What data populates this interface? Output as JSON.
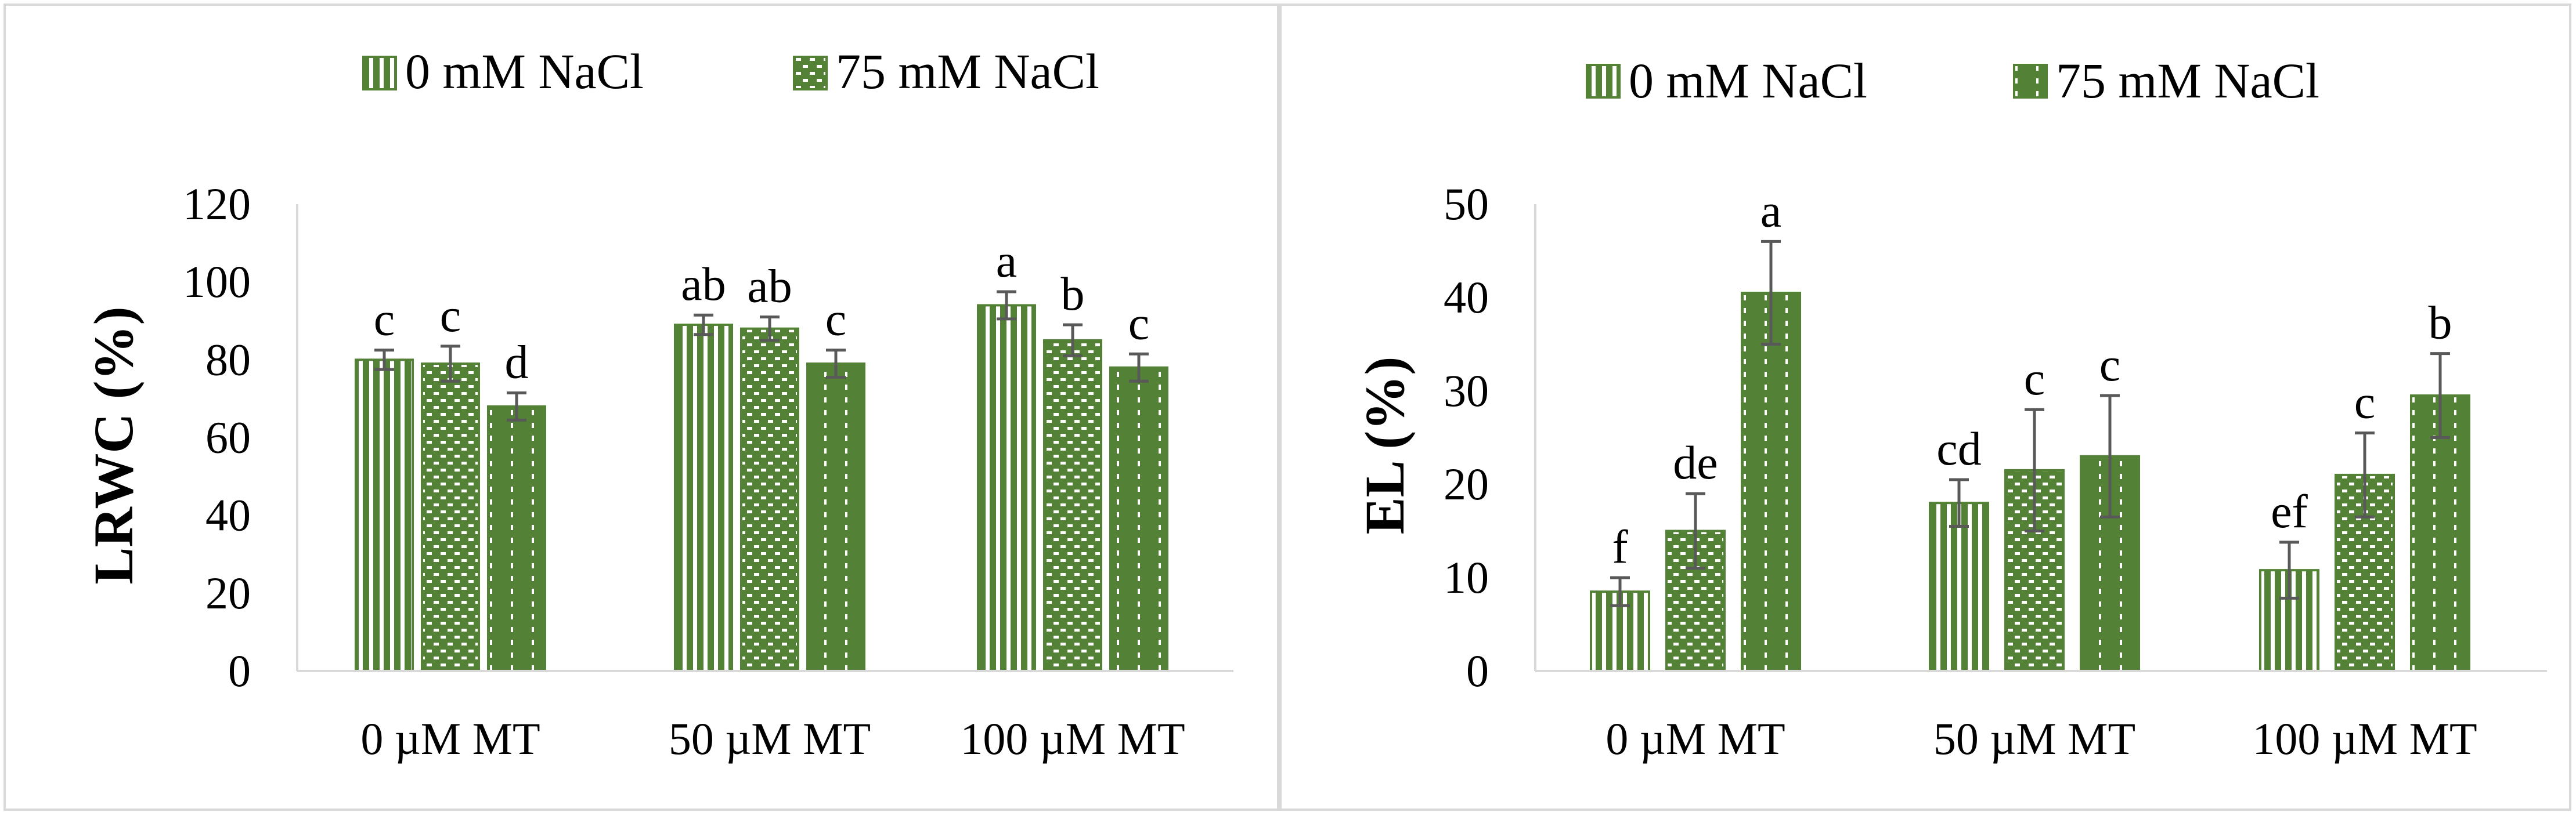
{
  "colors": {
    "bar_fill": "#538135",
    "bar_border": "#538135",
    "pattern_line": "#ffffff",
    "error_bar": "#595959",
    "axis": "#d9d9d9",
    "panel_border": "#d9d9d9"
  },
  "chart_data": [
    {
      "type": "bar",
      "title": "",
      "xlabel": "",
      "ylabel": "LRWC (%)",
      "ylim": [
        0,
        120
      ],
      "yticks": [
        "0",
        "20",
        "40",
        "60",
        "80",
        "100",
        "120"
      ],
      "grid": false,
      "legend_position": "top",
      "categories": [
        "0 µM MT",
        "50 µM MT",
        "100 µM MT"
      ],
      "legend": [
        {
          "label": "0 mM NaCl",
          "pattern": "vertical-stripes"
        },
        {
          "label": "75 mM NaCl",
          "pattern": "dots"
        }
      ],
      "series": [
        {
          "name": "0 mM NaCl",
          "pattern": "vertical-stripes",
          "values": [
            80,
            89,
            94
          ],
          "errors": [
            2.5,
            2.5,
            3.5
          ],
          "labels": [
            "c",
            "ab",
            "a"
          ]
        },
        {
          "name": "75 mM NaCl (bar 2)",
          "pattern": "dots",
          "values": [
            79,
            88,
            85
          ],
          "errors": [
            4.5,
            3,
            4
          ],
          "labels": [
            "c",
            "ab",
            "b"
          ]
        },
        {
          "name": "75 mM NaCl (bar 3)",
          "pattern": "dotted-lines",
          "values": [
            68,
            79,
            78
          ],
          "errors": [
            3.5,
            3.5,
            3.5
          ],
          "labels": [
            "d",
            "c",
            "c"
          ]
        }
      ]
    },
    {
      "type": "bar",
      "title": "",
      "xlabel": "",
      "ylabel": "EL (%)",
      "ylim": [
        0,
        50
      ],
      "yticks": [
        "0",
        "10",
        "20",
        "30",
        "40",
        "50"
      ],
      "grid": false,
      "legend_position": "top",
      "categories": [
        "0 µM MT",
        "50 µM MT",
        "100 µM MT"
      ],
      "legend": [
        {
          "label": "0 mM NaCl",
          "pattern": "vertical-stripes"
        },
        {
          "label": "75 mM NaCl",
          "pattern": "dotted-lines"
        }
      ],
      "series": [
        {
          "name": "0 mM NaCl",
          "pattern": "vertical-stripes",
          "values": [
            8.5,
            18,
            10.8
          ],
          "errors": [
            1.5,
            2.5,
            3
          ],
          "labels": [
            "f",
            "cd",
            "ef"
          ]
        },
        {
          "name": "75 mM NaCl (bar 2)",
          "pattern": "dots",
          "values": [
            15,
            21.5,
            21
          ],
          "errors": [
            4,
            6.5,
            4.5
          ],
          "labels": [
            "de",
            "c",
            "c"
          ]
        },
        {
          "name": "75 mM NaCl (bar 3)",
          "pattern": "dotted-lines",
          "values": [
            40.5,
            23,
            29.5
          ],
          "errors": [
            5.5,
            6.5,
            4.5
          ],
          "labels": [
            "a",
            "c",
            "b"
          ]
        }
      ]
    }
  ]
}
